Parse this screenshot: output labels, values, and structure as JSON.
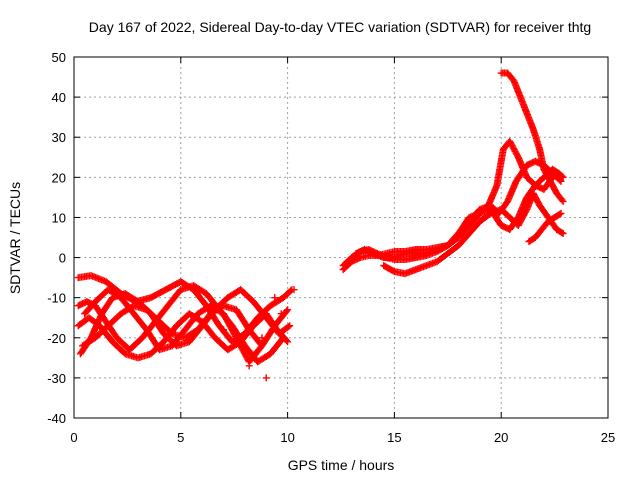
{
  "chart_data": {
    "type": "scatter",
    "title": "Day 167 of 2022, Sidereal Day-to-day VTEC variation (SDTVAR) for receiver thtg",
    "xlabel": "GPS time / hours",
    "ylabel": "SDTVAR / TECUs",
    "xlim": [
      0,
      25
    ],
    "ylim": [
      -40,
      50
    ],
    "xticks": [
      "0",
      "5",
      "10",
      "15",
      "20",
      "25"
    ],
    "yticks": [
      "-40",
      "-30",
      "-20",
      "-10",
      "0",
      "10",
      "20",
      "30",
      "40",
      "50"
    ],
    "grid": true,
    "marker": "+",
    "color": "#ff0000",
    "series": [
      {
        "name": "track-1",
        "x": [
          0.2,
          0.8,
          1.5,
          2.2,
          2.9,
          3.6,
          4.3,
          5.0,
          5.6,
          6.2,
          6.8,
          7.4,
          8.0,
          8.6,
          9.2,
          9.8,
          10.2
        ],
        "y": [
          -5,
          -4.5,
          -6,
          -9,
          -11,
          -10,
          -8,
          -6,
          -8,
          -12,
          -17,
          -21,
          -19,
          -15,
          -12,
          -10,
          -8
        ]
      },
      {
        "name": "track-2",
        "x": [
          0.2,
          0.6,
          1.0,
          1.5,
          2.0,
          2.6,
          3.2,
          3.8,
          4.4,
          5.0,
          5.6,
          6.2,
          6.8,
          7.4,
          8.0,
          8.6,
          9.2,
          9.8
        ],
        "y": [
          -12,
          -11,
          -12,
          -16,
          -20,
          -23,
          -20,
          -16,
          -12,
          -8,
          -7,
          -9,
          -13,
          -17,
          -22,
          -26,
          -24,
          -20
        ]
      },
      {
        "name": "track-3",
        "x": [
          0.3,
          0.8,
          1.3,
          1.8,
          2.4,
          3.0,
          3.6,
          4.2,
          4.8,
          5.4,
          6.0,
          6.6,
          7.2,
          7.8,
          8.4,
          9.0,
          9.6,
          10.1
        ],
        "y": [
          -24,
          -20,
          -14,
          -10,
          -9,
          -11,
          -14,
          -19,
          -22,
          -21,
          -17,
          -13,
          -10,
          -8,
          -11,
          -15,
          -19,
          -17
        ]
      },
      {
        "name": "track-4",
        "x": [
          0.2,
          0.7,
          1.2,
          1.8,
          2.4,
          3.0,
          3.6,
          4.2,
          4.8,
          5.4,
          6.0,
          6.6,
          7.2,
          7.8,
          8.4,
          9.0,
          9.5,
          10.0
        ],
        "y": [
          -17,
          -15,
          -17,
          -21,
          -24,
          -25,
          -24,
          -21,
          -17,
          -14,
          -16,
          -20,
          -23,
          -21,
          -17,
          -14,
          -18,
          -21
        ]
      },
      {
        "name": "track-5",
        "x": [
          0.5,
          1.0,
          1.6,
          2.2,
          2.8,
          3.4,
          4.0,
          4.6,
          5.2,
          5.8,
          6.4,
          7.0,
          7.6,
          8.2,
          8.8,
          9.4,
          10.0
        ],
        "y": [
          -14,
          -11,
          -8,
          -10,
          -14,
          -18,
          -23,
          -22,
          -18,
          -14,
          -12,
          -14,
          -20,
          -26,
          -22,
          -17,
          -13
        ]
      },
      {
        "name": "track-6",
        "x": [
          0.4,
          1.0,
          1.6,
          2.2,
          2.8,
          3.4,
          4.0,
          4.6,
          5.2,
          5.8,
          6.4,
          7.0,
          7.6,
          8.2,
          8.8
        ],
        "y": [
          -22,
          -20,
          -17,
          -14,
          -12,
          -13,
          -16,
          -19,
          -20,
          -18,
          -14,
          -12,
          -13,
          -18,
          -22
        ]
      },
      {
        "name": "outliers-a",
        "x": [
          7.0,
          7.5,
          8.2,
          8.8,
          9.0,
          9.4,
          9.7,
          10.0,
          10.3,
          8.5,
          9.1
        ],
        "y": [
          -18,
          -19,
          -27,
          -20,
          -30,
          -10,
          -14,
          -9,
          -8,
          -24,
          -15
        ]
      },
      {
        "name": "track-7",
        "x": [
          12.6,
          13.0,
          13.4,
          13.8,
          14.2,
          14.6,
          15.0,
          15.5,
          16.0,
          16.5,
          17.0,
          17.5,
          18.0,
          18.5,
          19.0,
          19.4,
          19.8,
          20.1,
          20.4,
          20.8,
          21.2,
          21.6,
          22.0,
          22.4,
          22.7,
          22.9
        ],
        "y": [
          -3,
          -1,
          0,
          0.5,
          0.5,
          1,
          1.5,
          1.5,
          2,
          2,
          2.5,
          3,
          5,
          8,
          11,
          13,
          18,
          27,
          29,
          25,
          20,
          18,
          20,
          22,
          21,
          20
        ]
      },
      {
        "name": "track-8",
        "x": [
          12.6,
          13.0,
          13.4,
          13.8,
          14.2,
          14.6,
          15.0,
          15.5,
          16.0,
          16.5,
          17.0,
          17.5,
          18.0,
          18.5,
          19.0,
          19.5,
          19.9,
          20.3,
          20.7,
          21.2,
          21.6,
          22.0,
          22.4,
          22.8
        ],
        "y": [
          -2,
          0,
          1.5,
          2,
          1,
          0,
          -0.5,
          -0.5,
          0,
          0.5,
          1.5,
          3,
          6,
          9,
          12,
          13,
          11,
          14,
          19,
          23,
          24,
          23,
          21,
          19
        ]
      },
      {
        "name": "track-9",
        "x": [
          13.2,
          13.6,
          14.0,
          14.5,
          15.0,
          15.5,
          16.0,
          16.5,
          17.0,
          17.5,
          18.0,
          18.5,
          19.0,
          19.5,
          20.0,
          20.4,
          20.8,
          21.2,
          21.6,
          22.0,
          22.4,
          22.7
        ],
        "y": [
          1,
          2,
          1,
          0,
          0,
          1,
          1,
          1,
          2,
          3,
          6,
          10,
          11,
          12,
          8,
          7,
          10,
          15,
          18,
          17,
          20,
          21
        ]
      },
      {
        "name": "track-10",
        "x": [
          14.5,
          15.0,
          15.5,
          16.0,
          16.5,
          17.0,
          17.5,
          18.0,
          18.5,
          19.0,
          19.5,
          20.0,
          20.4,
          20.8,
          21.2,
          21.5,
          21.8,
          22.2,
          22.6,
          22.9
        ],
        "y": [
          -2,
          -3.5,
          -4,
          -3,
          -2,
          -1,
          1,
          3,
          6,
          9,
          11,
          12,
          10,
          8,
          12,
          16,
          13,
          10,
          7,
          6
        ]
      },
      {
        "name": "track-11",
        "x": [
          20.0,
          20.3,
          20.6,
          20.9,
          21.2,
          21.5,
          21.8,
          22.0,
          22.3,
          22.6,
          22.9
        ],
        "y": [
          46,
          46,
          44,
          40,
          36,
          32,
          27,
          22,
          19,
          16,
          14
        ]
      },
      {
        "name": "track-12",
        "x": [
          21.3,
          21.6,
          21.9,
          22.2,
          22.5,
          22.8
        ],
        "y": [
          4,
          5,
          7,
          9,
          10,
          11
        ]
      }
    ]
  }
}
